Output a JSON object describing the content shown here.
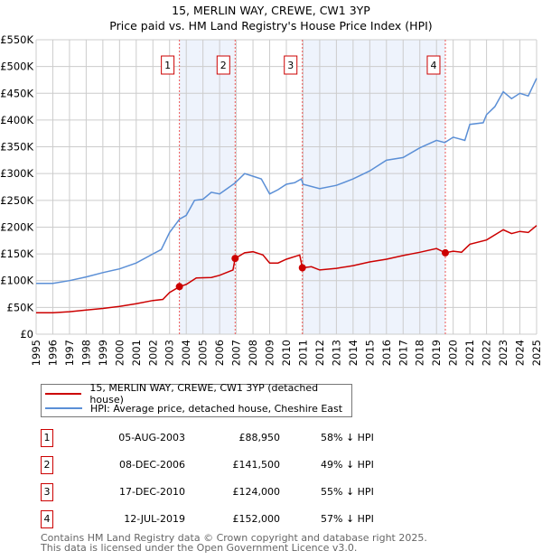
{
  "chart_data": {
    "type": "line",
    "title": "15, MERLIN WAY, CREWE, CW1 3YP",
    "subtitle": "Price paid vs. HM Land Registry's House Price Index (HPI)",
    "xlim": [
      1995,
      2025
    ],
    "ylim": [
      0,
      550000
    ],
    "y_ticks": [
      {
        "v": 0,
        "l": "£0"
      },
      {
        "v": 50000,
        "l": "£50K"
      },
      {
        "v": 100000,
        "l": "£100K"
      },
      {
        "v": 150000,
        "l": "£150K"
      },
      {
        "v": 200000,
        "l": "£200K"
      },
      {
        "v": 250000,
        "l": "£250K"
      },
      {
        "v": 300000,
        "l": "£300K"
      },
      {
        "v": 350000,
        "l": "£350K"
      },
      {
        "v": 400000,
        "l": "£400K"
      },
      {
        "v": 450000,
        "l": "£450K"
      },
      {
        "v": 500000,
        "l": "£500K"
      },
      {
        "v": 550000,
        "l": "£550K"
      }
    ],
    "x_ticks": [
      "1995",
      "1996",
      "1997",
      "1998",
      "1999",
      "2000",
      "2001",
      "2002",
      "2003",
      "2004",
      "2005",
      "2006",
      "2007",
      "2008",
      "2009",
      "2010",
      "2011",
      "2012",
      "2013",
      "2014",
      "2015",
      "2016",
      "2017",
      "2018",
      "2019",
      "2020",
      "2021",
      "2022",
      "2023",
      "2024",
      "2025"
    ],
    "grid": true,
    "series": [
      {
        "name": "15, MERLIN WAY, CREWE, CW1 3YP (detached house)",
        "color": "#cc0000",
        "x": [
          1995,
          1996,
          1997,
          1998,
          1999,
          2000,
          2001,
          2002,
          2002.6,
          2003,
          2003.6,
          2004,
          2004.6,
          2005.5,
          2006,
          2006.8,
          2006.93,
          2007.5,
          2008,
          2008.6,
          2009,
          2009.5,
          2010,
          2010.8,
          2010.96,
          2011.5,
          2012,
          2013,
          2014,
          2015,
          2016,
          2017,
          2018,
          2019,
          2019.53,
          2020,
          2020.5,
          2021,
          2022,
          2023,
          2023.5,
          2024,
          2024.5,
          2025
        ],
        "y": [
          40000,
          40000,
          42000,
          45000,
          48000,
          52000,
          57000,
          63000,
          65000,
          78000,
          88950,
          93000,
          105000,
          106000,
          110000,
          120000,
          141500,
          152000,
          154000,
          148000,
          133000,
          133000,
          140000,
          148000,
          124000,
          126000,
          120000,
          123000,
          128000,
          135000,
          140000,
          147000,
          153000,
          160000,
          152000,
          155000,
          153000,
          168000,
          176000,
          195000,
          188000,
          192000,
          190000,
          203000
        ]
      },
      {
        "name": "HPI: Average price, detached house, Cheshire East",
        "color": "#5b8fd6",
        "x": [
          1995,
          1996,
          1997,
          1998,
          1999,
          2000,
          2001,
          2002,
          2002.5,
          2003,
          2003.6,
          2004,
          2004.5,
          2005,
          2005.5,
          2006,
          2006.9,
          2007.5,
          2008,
          2008.5,
          2009,
          2009.5,
          2010,
          2010.5,
          2010.9,
          2011,
          2012,
          2013,
          2014,
          2015,
          2016,
          2017,
          2018,
          2019,
          2019.5,
          2020,
          2020.7,
          2021,
          2021.8,
          2022,
          2022.5,
          2023,
          2023.5,
          2024,
          2024.5,
          2025
        ],
        "y": [
          95000,
          95000,
          100000,
          107000,
          115000,
          122000,
          133000,
          150000,
          158000,
          190000,
          215000,
          222000,
          250000,
          252000,
          265000,
          262000,
          282000,
          300000,
          295000,
          290000,
          262000,
          270000,
          280000,
          283000,
          290000,
          280000,
          272000,
          278000,
          290000,
          305000,
          325000,
          330000,
          348000,
          362000,
          358000,
          368000,
          362000,
          392000,
          395000,
          410000,
          425000,
          453000,
          440000,
          450000,
          445000,
          478000
        ]
      }
    ],
    "sales": [
      {
        "n": "1",
        "x": 2003.59,
        "price": 88950,
        "date": "05-AUG-2003",
        "price_label": "£88,950",
        "hpi": "58% ↓ HPI"
      },
      {
        "n": "2",
        "x": 2006.93,
        "price": 141500,
        "date": "08-DEC-2006",
        "price_label": "£141,500",
        "hpi": "49% ↓ HPI"
      },
      {
        "n": "3",
        "x": 2010.96,
        "price": 124000,
        "date": "17-DEC-2010",
        "price_label": "£124,000",
        "hpi": "55% ↓ HPI"
      },
      {
        "n": "4",
        "x": 2019.53,
        "price": 152000,
        "date": "12-JUL-2019",
        "price_label": "£152,000",
        "hpi": "57% ↓ HPI"
      }
    ],
    "shaded": [
      [
        2003.59,
        2006.93
      ],
      [
        2010.96,
        2019.53
      ]
    ]
  },
  "footer": {
    "line1": "Contains HM Land Registry data © Crown copyright and database right 2025.",
    "line2": "This data is licensed under the Open Government Licence v3.0."
  }
}
